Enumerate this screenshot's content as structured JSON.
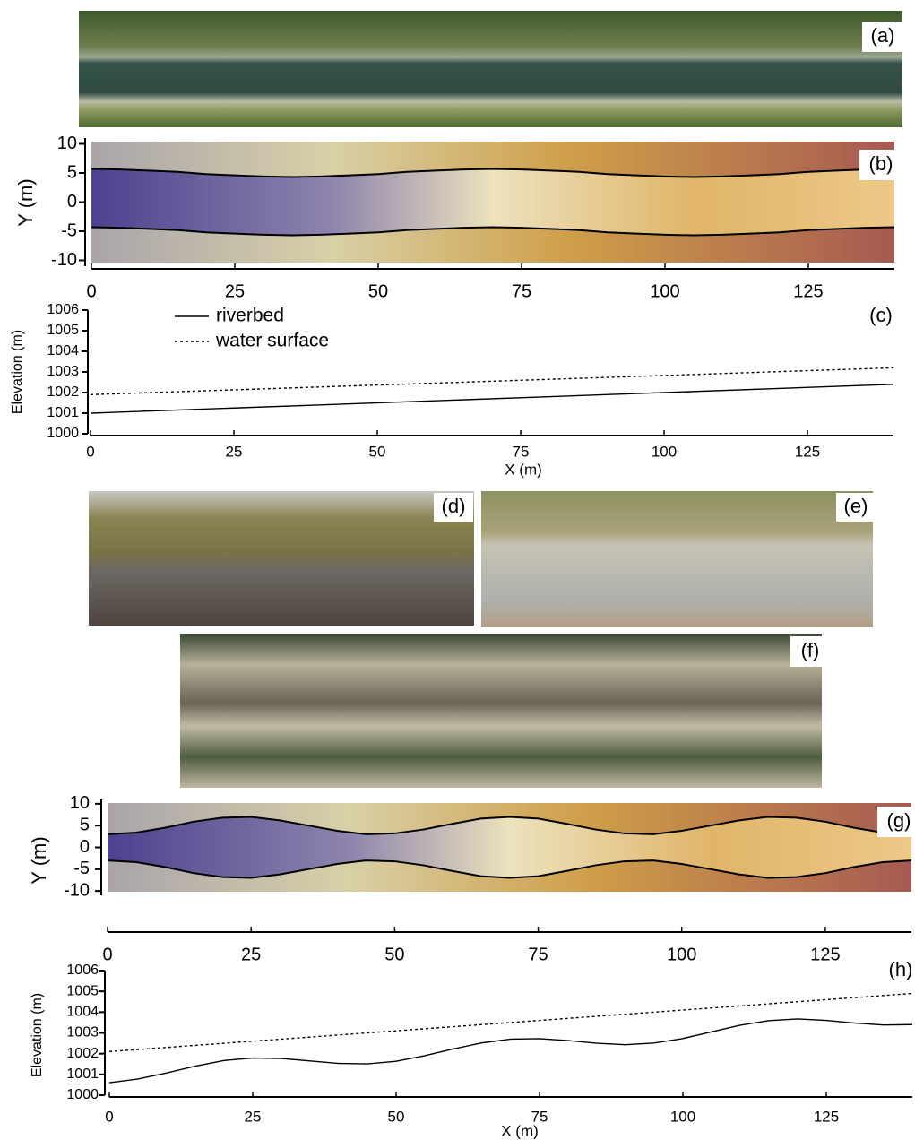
{
  "photo_labels": {
    "a": "(a)",
    "d": "(d)",
    "e": "(e)",
    "f": "(f)"
  },
  "chart_data": [
    {
      "type": "plan",
      "panel_label": "(b)",
      "ylabel": "Y (m)",
      "x": [
        0,
        5,
        10,
        15,
        20,
        25,
        30,
        35,
        40,
        45,
        50,
        55,
        60,
        65,
        70,
        75,
        80,
        85,
        90,
        95,
        100,
        105,
        110,
        115,
        120,
        125,
        130,
        135,
        140
      ],
      "series": [
        {
          "color": "#000000",
          "values": [
            5.7,
            5.6,
            5.4,
            5.2,
            4.8,
            4.6,
            4.4,
            4.3,
            4.4,
            4.6,
            4.8,
            5.2,
            5.4,
            5.6,
            5.7,
            5.6,
            5.4,
            5.2,
            4.8,
            4.6,
            4.4,
            4.3,
            4.4,
            4.6,
            4.8,
            5.2,
            5.4,
            5.6,
            5.7
          ]
        },
        {
          "color": "#000000",
          "values": [
            -4.3,
            -4.4,
            -4.6,
            -4.8,
            -5.2,
            -5.4,
            -5.6,
            -5.7,
            -5.6,
            -5.4,
            -5.2,
            -4.8,
            -4.6,
            -4.4,
            -4.3,
            -4.4,
            -4.6,
            -4.8,
            -5.2,
            -5.4,
            -5.6,
            -5.7,
            -5.6,
            -5.4,
            -5.2,
            -4.8,
            -4.6,
            -4.4,
            -4.3
          ]
        }
      ],
      "xlim": [
        0,
        140
      ],
      "ylim": [
        -11,
        11
      ],
      "xticks": [
        0,
        25,
        50,
        75,
        100,
        125
      ],
      "yticks": [
        -10,
        -5,
        0,
        5,
        10
      ]
    },
    {
      "type": "profile",
      "panel_label": "(c)",
      "xlabel": "X (m)",
      "ylabel": "Elevation (m)",
      "x": [
        0,
        140
      ],
      "series": [
        {
          "name": "riverbed",
          "color": "#000000",
          "style": "solid",
          "values": [
            1001.0,
            1002.4
          ]
        },
        {
          "name": "water surface",
          "color": "#000000",
          "style": "dashed",
          "values": [
            1001.9,
            1003.2
          ]
        }
      ],
      "xlim": [
        0,
        140
      ],
      "ylim": [
        1000,
        1006
      ],
      "xticks": [
        0,
        25,
        50,
        75,
        100,
        125
      ],
      "yticks": [
        1000,
        1001,
        1002,
        1003,
        1004,
        1005,
        1006
      ]
    },
    {
      "type": "plan",
      "panel_label": "(g)",
      "ylabel": "Y (m)",
      "x": [
        0,
        5,
        10,
        15,
        20,
        25,
        30,
        35,
        40,
        45,
        50,
        55,
        60,
        65,
        70,
        75,
        80,
        85,
        90,
        95,
        100,
        105,
        110,
        115,
        120,
        125,
        130,
        135,
        140
      ],
      "series": [
        {
          "color": "#000000",
          "values": [
            3.0,
            3.4,
            4.5,
            5.9,
            6.8,
            7.0,
            6.2,
            5.0,
            3.8,
            3.0,
            3.2,
            4.1,
            5.4,
            6.6,
            7.0,
            6.6,
            5.4,
            4.1,
            3.2,
            3.0,
            3.8,
            5.0,
            6.2,
            7.0,
            6.8,
            5.9,
            4.5,
            3.4,
            3.0
          ]
        },
        {
          "color": "#000000",
          "values": [
            -3.0,
            -3.4,
            -4.5,
            -5.9,
            -6.8,
            -7.0,
            -6.2,
            -5.0,
            -3.8,
            -3.0,
            -3.2,
            -4.1,
            -5.4,
            -6.6,
            -7.0,
            -6.6,
            -5.4,
            -4.1,
            -3.2,
            -3.0,
            -3.8,
            -5.0,
            -6.2,
            -7.0,
            -6.8,
            -5.9,
            -4.5,
            -3.4,
            -3.0
          ]
        }
      ],
      "xlim": [
        0,
        140
      ],
      "ylim": [
        -11,
        11
      ],
      "xticks": [
        0,
        25,
        50,
        75,
        100,
        125
      ],
      "yticks": [
        -10,
        -5,
        0,
        5,
        10
      ]
    },
    {
      "type": "profile",
      "panel_label": "(h)",
      "xlabel": "X (m)",
      "ylabel": "Elevation (m)",
      "x": [
        0,
        5,
        10,
        15,
        20,
        25,
        30,
        35,
        40,
        45,
        50,
        55,
        60,
        65,
        70,
        75,
        80,
        85,
        90,
        95,
        100,
        105,
        110,
        115,
        120,
        125,
        130,
        135,
        140
      ],
      "series": [
        {
          "color": "#000000",
          "style": "solid",
          "values": [
            1000.6,
            1000.78,
            1001.07,
            1001.4,
            1001.67,
            1001.79,
            1001.77,
            1001.65,
            1001.53,
            1001.51,
            1001.63,
            1001.9,
            1002.23,
            1002.52,
            1002.7,
            1002.72,
            1002.63,
            1002.5,
            1002.43,
            1002.51,
            1002.73,
            1003.05,
            1003.37,
            1003.59,
            1003.67,
            1003.6,
            1003.47,
            1003.38,
            1003.4
          ]
        },
        {
          "color": "#000000",
          "style": "dashed",
          "values": [
            1002.1,
            1002.2,
            1002.3,
            1002.4,
            1002.5,
            1002.6,
            1002.7,
            1002.8,
            1002.9,
            1003.0,
            1003.1,
            1003.2,
            1003.3,
            1003.4,
            1003.5,
            1003.6,
            1003.7,
            1003.8,
            1003.9,
            1004.0,
            1004.1,
            1004.2,
            1004.3,
            1004.4,
            1004.5,
            1004.6,
            1004.7,
            1004.8,
            1004.9
          ]
        }
      ],
      "xlim": [
        0,
        140
      ],
      "ylim": [
        1000,
        1006
      ],
      "xticks": [
        0,
        25,
        50,
        75,
        100,
        125
      ],
      "yticks": [
        1000,
        1001,
        1002,
        1003,
        1004,
        1005,
        1006
      ]
    }
  ]
}
